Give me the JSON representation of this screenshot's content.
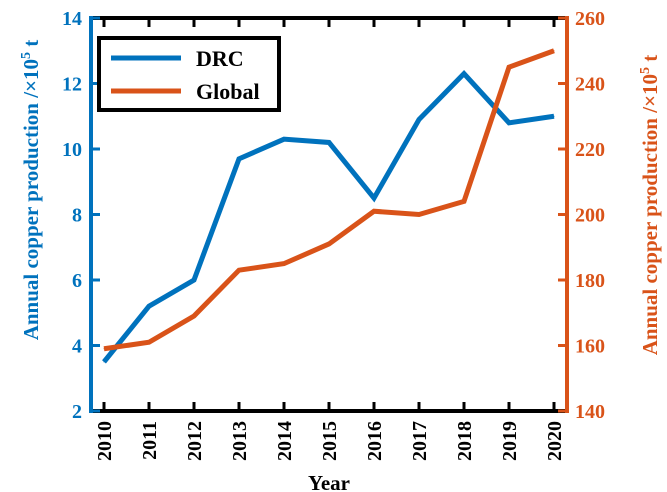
{
  "chart_data": {
    "type": "line",
    "x": [
      2010,
      2011,
      2012,
      2013,
      2014,
      2015,
      2016,
      2017,
      2018,
      2019,
      2020
    ],
    "xlabel": "Year",
    "ylabel_left": "Annual copper production /×10",
    "ylabel_right": "Annual copper production /×10",
    "ylabel_exponent": "5",
    "ylabel_unit": " t",
    "ylim_left": [
      2,
      14
    ],
    "ylim_right": [
      140,
      260
    ],
    "yticks_left": [
      2,
      4,
      6,
      8,
      10,
      12,
      14
    ],
    "yticks_right": [
      140,
      160,
      180,
      200,
      220,
      240,
      260
    ],
    "legend_position": "top-left",
    "grid": false,
    "series": [
      {
        "name": "DRC",
        "axis": "left",
        "color": "#0072BD",
        "values": [
          3.5,
          5.2,
          6.0,
          9.7,
          10.3,
          10.2,
          8.5,
          10.9,
          12.3,
          10.8,
          11.0
        ]
      },
      {
        "name": "Global",
        "axis": "right",
        "color": "#D95319",
        "values": [
          159,
          161,
          169,
          183,
          185,
          191,
          201,
          200,
          204,
          245,
          250
        ]
      }
    ],
    "colors": {
      "left_axis": "#0072BD",
      "right_axis": "#D95319",
      "frame": "#000000"
    }
  }
}
